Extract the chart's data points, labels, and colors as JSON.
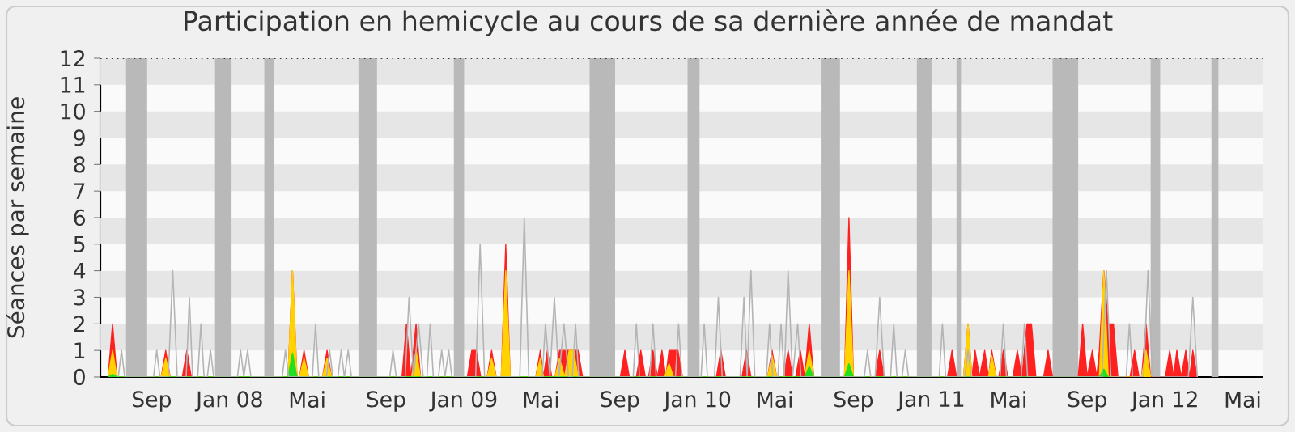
{
  "chart_data": {
    "type": "area",
    "title": "Participation en hemicycle au cours de sa dernière année de mandat",
    "ylabel": "Séances par semaine",
    "xlim": [
      "2007-06-13",
      "2012-06-01"
    ],
    "xticks": [
      {
        "value": "2007-09-01",
        "label": "Sep"
      },
      {
        "value": "2008-01-01",
        "label": "Jan 08"
      },
      {
        "value": "2008-05-01",
        "label": "Mai"
      },
      {
        "value": "2008-09-01",
        "label": "Sep"
      },
      {
        "value": "2009-01-01",
        "label": "Jan 09"
      },
      {
        "value": "2009-05-01",
        "label": "Mai"
      },
      {
        "value": "2009-09-01",
        "label": "Sep"
      },
      {
        "value": "2010-01-01",
        "label": "Jan 10"
      },
      {
        "value": "2010-05-01",
        "label": "Mai"
      },
      {
        "value": "2010-09-01",
        "label": "Sep"
      },
      {
        "value": "2011-01-01",
        "label": "Jan 11"
      },
      {
        "value": "2011-05-01",
        "label": "Mai"
      },
      {
        "value": "2011-09-01",
        "label": "Sep"
      },
      {
        "value": "2012-01-01",
        "label": "Jan 12"
      },
      {
        "value": "2012-05-01",
        "label": "Mai"
      }
    ],
    "ylim": [
      0,
      12
    ],
    "yticks": [
      0,
      1,
      2,
      3,
      4,
      5,
      6,
      7,
      8,
      9,
      10,
      11,
      12
    ],
    "bands": [
      {
        "axis": "y",
        "from": 1,
        "to": 2,
        "color": "#e6e6e6"
      },
      {
        "axis": "y",
        "from": 3,
        "to": 4,
        "color": "#e6e6e6"
      },
      {
        "axis": "y",
        "from": 5,
        "to": 6,
        "color": "#e6e6e6"
      },
      {
        "axis": "y",
        "from": 7,
        "to": 8,
        "color": "#e6e6e6"
      },
      {
        "axis": "y",
        "from": 9,
        "to": 10,
        "color": "#e6e6e6"
      },
      {
        "axis": "y",
        "from": 11,
        "to": 12,
        "color": "#e6e6e6"
      },
      {
        "axis": "x",
        "from": "2007-07-23",
        "to": "2007-08-25",
        "color": "#b9b9b9"
      },
      {
        "axis": "x",
        "from": "2007-12-09",
        "to": "2008-01-04",
        "color": "#b9b9b9"
      },
      {
        "axis": "x",
        "from": "2008-02-24",
        "to": "2008-03-10",
        "color": "#b9b9b9"
      },
      {
        "axis": "x",
        "from": "2008-07-20",
        "to": "2008-08-18",
        "color": "#b9b9b9"
      },
      {
        "axis": "x",
        "from": "2008-12-16",
        "to": "2009-01-01",
        "color": "#b9b9b9"
      },
      {
        "axis": "x",
        "from": "2009-07-16",
        "to": "2009-08-25",
        "color": "#b9b9b9"
      },
      {
        "axis": "x",
        "from": "2009-12-16",
        "to": "2010-01-04",
        "color": "#b9b9b9"
      },
      {
        "axis": "x",
        "from": "2010-07-12",
        "to": "2010-08-11",
        "color": "#b9b9b9"
      },
      {
        "axis": "x",
        "from": "2010-12-09",
        "to": "2011-01-01",
        "color": "#b9b9b9"
      },
      {
        "axis": "x",
        "from": "2011-02-09",
        "to": "2011-02-16",
        "color": "#b9b9b9"
      },
      {
        "axis": "x",
        "from": "2011-07-09",
        "to": "2011-08-18",
        "color": "#b9b9b9"
      },
      {
        "axis": "x",
        "from": "2011-12-09",
        "to": "2011-12-24",
        "color": "#b9b9b9"
      },
      {
        "axis": "x",
        "from": "2012-03-13",
        "to": "2012-03-24",
        "color": "#b9b9b9"
      }
    ],
    "series": [
      {
        "type": "line",
        "color": "#b4b4b4",
        "x": [
          "2007-07-11",
          "2007-07-16",
          "2007-07-21",
          "2007-09-04",
          "2007-09-09",
          "2007-09-14",
          "2007-09-27",
          "2007-10-04",
          "2007-10-11",
          "2007-10-25",
          "2007-10-30",
          "2007-11-04",
          "2007-11-12",
          "2007-11-17",
          "2007-11-22",
          "2007-11-27",
          "2007-12-02",
          "2007-12-07",
          "2008-01-13",
          "2008-01-18",
          "2008-01-23",
          "2008-01-29",
          "2008-02-03",
          "2008-03-23",
          "2008-03-28",
          "2008-04-02",
          "2008-05-09",
          "2008-05-14",
          "2008-05-19",
          "2008-05-31",
          "2008-06-05",
          "2008-06-10",
          "2008-06-18",
          "2008-06-23",
          "2008-06-28",
          "2008-07-04",
          "2008-07-09",
          "2008-09-07",
          "2008-09-12",
          "2008-09-17",
          "2008-10-01",
          "2008-10-07",
          "2008-10-14",
          "2008-10-22",
          "2008-10-29",
          "2008-11-04",
          "2008-11-09",
          "2008-11-14",
          "2008-11-22",
          "2008-11-27",
          "2008-12-02",
          "2008-12-08",
          "2008-12-13",
          "2009-01-19",
          "2009-01-26",
          "2009-02-02",
          "2009-03-29",
          "2009-04-05",
          "2009-04-12",
          "2009-05-03",
          "2009-05-08",
          "2009-05-15",
          "2009-05-22",
          "2009-05-29",
          "2009-06-06",
          "2009-06-13",
          "2009-06-19",
          "2009-06-24",
          "2009-06-29",
          "2009-09-22",
          "2009-09-27",
          "2009-10-02",
          "2009-10-18",
          "2009-10-23",
          "2009-10-28",
          "2009-11-27",
          "2009-12-02",
          "2009-12-07",
          "2010-01-06",
          "2010-01-11",
          "2010-01-16",
          "2010-01-27",
          "2010-02-02",
          "2010-02-08",
          "2010-03-08",
          "2010-03-14",
          "2010-03-19",
          "2010-03-25",
          "2010-03-31",
          "2010-04-18",
          "2010-04-23",
          "2010-04-28",
          "2010-05-06",
          "2010-05-11",
          "2010-05-16",
          "2010-05-22",
          "2010-05-29",
          "2010-06-06",
          "2010-06-11",
          "2010-09-18",
          "2010-09-23",
          "2010-09-28",
          "2010-10-05",
          "2010-10-12",
          "2010-10-19",
          "2010-10-29",
          "2010-11-03",
          "2010-11-08",
          "2010-11-16",
          "2010-11-21",
          "2010-11-26",
          "2011-01-13",
          "2011-01-18",
          "2011-01-23",
          "2011-02-22",
          "2011-02-27",
          "2011-03-04",
          "2011-04-18",
          "2011-04-23",
          "2011-04-28",
          "2011-05-21",
          "2011-05-26",
          "2011-05-31",
          "2011-09-24",
          "2011-10-01",
          "2011-10-08",
          "2011-11-01",
          "2011-11-06",
          "2011-11-11",
          "2011-11-28",
          "2011-12-05",
          "2011-12-12",
          "2012-02-06",
          "2012-02-13",
          "2012-02-20"
        ],
        "values": [
          0,
          1,
          0,
          0,
          1,
          0,
          0,
          4,
          0,
          0,
          3,
          0,
          0,
          2,
          0,
          0,
          1,
          0,
          0,
          1,
          0,
          1,
          0,
          0,
          1,
          0,
          0,
          2,
          0,
          0,
          1,
          0,
          0,
          1,
          0,
          1,
          0,
          0,
          1,
          0,
          0,
          3,
          0,
          2,
          0,
          0,
          2,
          0,
          0,
          1,
          0,
          1,
          0,
          0,
          5,
          0,
          0,
          6,
          0,
          0,
          2,
          0,
          3,
          0,
          2,
          0,
          0,
          2,
          0,
          0,
          2,
          0,
          0,
          2,
          0,
          0,
          2,
          0,
          0,
          2,
          0,
          0,
          3,
          0,
          0,
          3,
          0,
          4,
          0,
          0,
          2,
          0,
          0,
          2,
          0,
          4,
          0,
          2,
          0,
          0,
          1,
          0,
          0,
          3,
          0,
          0,
          2,
          0,
          0,
          1,
          0,
          0,
          2,
          0,
          0,
          1,
          0,
          0,
          2,
          0,
          0,
          2,
          0,
          0,
          4,
          0,
          0,
          2,
          0,
          0,
          4,
          0,
          0,
          3,
          0
        ]
      },
      {
        "color": "#ff2020",
        "x": [
          "2007-06-25",
          "2007-07-02",
          "2007-07-09",
          "2007-09-16",
          "2007-09-23",
          "2007-09-30",
          "2007-10-19",
          "2007-10-26",
          "2007-11-02",
          "2008-04-01",
          "2008-04-08",
          "2008-04-15",
          "2008-04-19",
          "2008-04-26",
          "2008-05-03",
          "2008-05-25",
          "2008-06-01",
          "2008-06-08",
          "2008-09-26",
          "2008-10-03",
          "2008-10-10",
          "2008-10-18",
          "2008-10-25",
          "2009-01-06",
          "2009-01-13",
          "2009-01-20",
          "2009-01-27",
          "2009-02-06",
          "2009-02-13",
          "2009-02-20",
          "2009-02-28",
          "2009-03-07",
          "2009-03-14",
          "2009-04-23",
          "2009-04-30",
          "2009-05-05",
          "2009-05-11",
          "2009-05-18",
          "2009-05-23",
          "2009-05-30",
          "2009-06-07",
          "2009-06-14",
          "2009-06-21",
          "2009-06-28",
          "2009-07-05",
          "2009-09-02",
          "2009-09-09",
          "2009-09-16",
          "2009-09-27",
          "2009-10-04",
          "2009-10-11",
          "2009-10-16",
          "2009-10-23",
          "2009-10-30",
          "2009-11-06",
          "2009-11-12",
          "2009-11-17",
          "2009-11-24",
          "2009-12-01",
          "2009-12-08",
          "2010-01-30",
          "2010-02-06",
          "2010-02-13",
          "2010-03-11",
          "2010-03-18",
          "2010-03-25",
          "2010-04-20",
          "2010-04-27",
          "2010-05-04",
          "2010-05-15",
          "2010-05-22",
          "2010-05-29",
          "2010-06-03",
          "2010-06-10",
          "2010-06-17",
          "2010-06-24",
          "2010-07-01",
          "2010-08-18",
          "2010-08-25",
          "2010-09-01",
          "2010-10-05",
          "2010-10-12",
          "2010-10-19",
          "2011-01-26",
          "2011-02-02",
          "2011-02-09",
          "2011-02-20",
          "2011-02-27",
          "2011-03-05",
          "2011-03-10",
          "2011-03-17",
          "2011-03-25",
          "2011-03-31",
          "2011-04-05",
          "2011-04-12",
          "2011-04-16",
          "2011-04-23",
          "2011-04-30",
          "2011-05-08",
          "2011-05-15",
          "2011-05-22",
          "2011-05-30",
          "2011-06-06",
          "2011-06-13",
          "2011-06-25",
          "2011-07-02",
          "2011-07-09",
          "2011-08-18",
          "2011-08-25",
          "2011-09-01",
          "2011-09-09",
          "2011-09-16",
          "2011-09-20",
          "2011-09-27",
          "2011-10-04",
          "2011-10-12",
          "2011-10-19",
          "2011-11-07",
          "2011-11-14",
          "2011-11-21",
          "2011-11-25",
          "2011-12-02",
          "2011-12-09",
          "2012-01-01",
          "2012-01-08",
          "2012-01-14",
          "2012-01-19",
          "2012-01-26",
          "2012-02-02",
          "2012-02-08",
          "2012-02-13",
          "2012-02-20"
        ],
        "values": [
          0,
          2,
          0,
          0,
          1,
          0,
          0,
          1,
          0,
          0,
          4,
          0,
          0,
          1,
          0,
          0,
          1,
          0,
          0,
          2,
          0,
          2,
          0,
          0,
          1,
          1,
          0,
          0,
          1,
          0,
          0,
          5,
          0,
          0,
          1,
          0,
          1,
          0,
          0,
          1,
          1,
          1,
          1,
          1,
          0,
          0,
          1,
          0,
          0,
          1,
          0,
          0,
          1,
          0,
          1,
          0,
          1,
          1,
          1,
          0,
          0,
          1,
          0,
          0,
          1,
          0,
          0,
          1,
          0,
          0,
          1,
          0,
          0,
          1,
          0,
          2,
          0,
          0,
          6,
          0,
          0,
          1,
          0,
          0,
          1,
          0,
          0,
          2,
          0,
          1,
          0,
          1,
          0,
          1,
          0,
          0,
          1,
          0,
          0,
          1,
          0,
          2,
          2,
          0,
          0,
          1,
          0,
          0,
          2,
          0,
          1,
          0,
          1,
          4,
          2,
          2,
          0,
          0,
          1,
          0,
          0,
          2,
          0,
          0,
          1,
          0,
          1,
          0,
          1,
          0,
          1,
          0
        ]
      },
      {
        "color": "#ffd200",
        "x": [
          "2007-06-25",
          "2007-07-02",
          "2007-07-09",
          "2007-09-16",
          "2007-09-23",
          "2007-09-30",
          "2008-04-01",
          "2008-04-08",
          "2008-04-15",
          "2008-04-19",
          "2008-04-26",
          "2008-05-03",
          "2008-05-25",
          "2008-06-01",
          "2008-06-08",
          "2008-10-11",
          "2008-10-18",
          "2008-10-25",
          "2009-02-06",
          "2009-02-13",
          "2009-02-20",
          "2009-02-28",
          "2009-03-07",
          "2009-03-14",
          "2009-04-23",
          "2009-04-30",
          "2009-05-05",
          "2009-05-23",
          "2009-05-30",
          "2009-06-07",
          "2009-06-14",
          "2009-06-21",
          "2009-06-28",
          "2009-11-10",
          "2009-11-17",
          "2009-11-24",
          "2010-04-20",
          "2010-04-27",
          "2010-05-04",
          "2010-06-17",
          "2010-06-24",
          "2010-07-01",
          "2010-08-18",
          "2010-08-25",
          "2010-09-01",
          "2011-02-20",
          "2011-02-27",
          "2011-03-05",
          "2011-03-31",
          "2011-04-05",
          "2011-04-12",
          "2011-09-20",
          "2011-09-27",
          "2011-10-04",
          "2011-11-25",
          "2011-12-02",
          "2011-12-09"
        ],
        "values": [
          0,
          1,
          0,
          0,
          0.7,
          0,
          0,
          4,
          0,
          0,
          0.7,
          0,
          0,
          0.7,
          0,
          0,
          1,
          0,
          0,
          0.7,
          0,
          0,
          4,
          0,
          0,
          0.7,
          0,
          0,
          0.7,
          0,
          1,
          1,
          0,
          0,
          0.5,
          0,
          0,
          0.8,
          0,
          0,
          1,
          0,
          0,
          4,
          0,
          0,
          2,
          0,
          0,
          0.8,
          0,
          0,
          4,
          0,
          0,
          1,
          0
        ]
      },
      {
        "color": "#20e020",
        "x": [
          "2007-06-25",
          "2007-07-02",
          "2007-07-09",
          "2008-04-01",
          "2008-04-08",
          "2008-04-15",
          "2010-06-17",
          "2010-06-24",
          "2010-07-01",
          "2010-08-18",
          "2010-08-25",
          "2010-09-01",
          "2011-09-20",
          "2011-09-27",
          "2011-10-04"
        ],
        "values": [
          0,
          0.1,
          0,
          0,
          0.9,
          0,
          0,
          0.4,
          0,
          0,
          0.5,
          0,
          0,
          0.3,
          0
        ]
      }
    ]
  }
}
